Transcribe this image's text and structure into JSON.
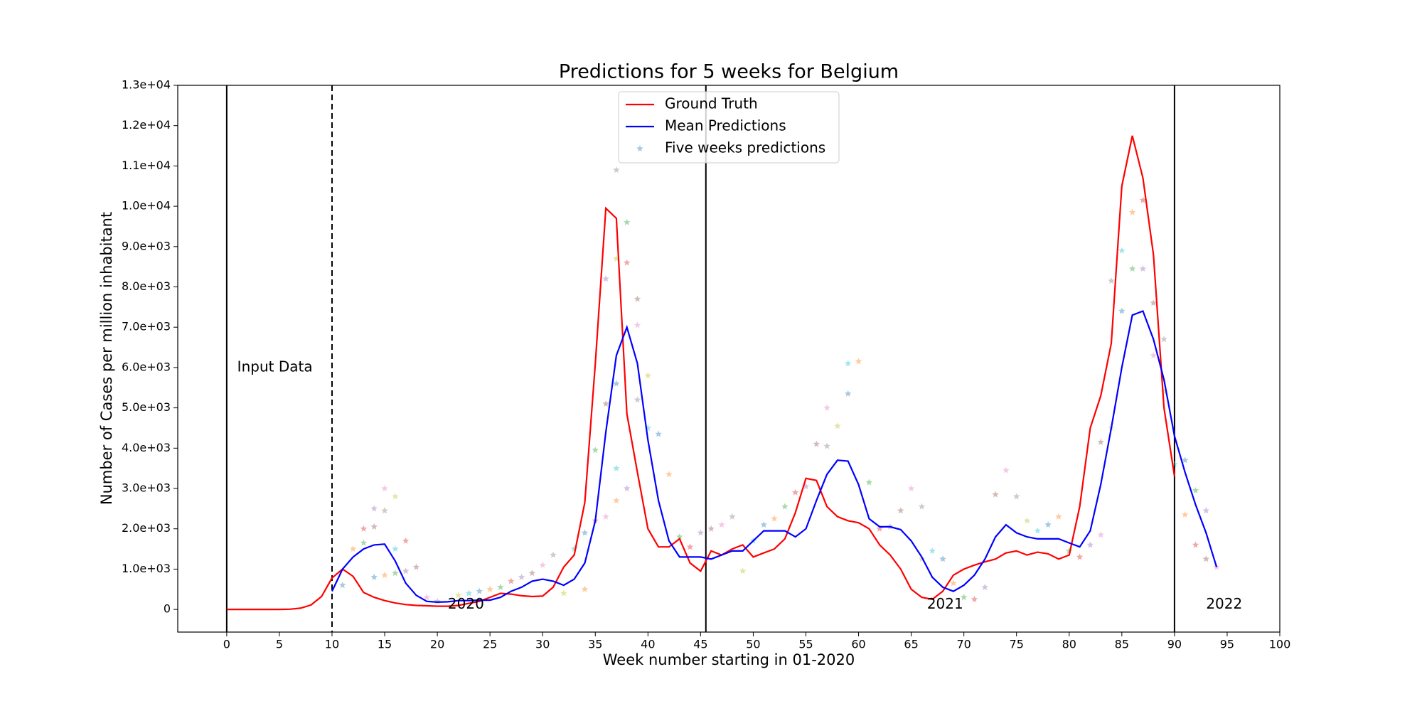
{
  "chart_data": {
    "type": "line",
    "title": "Predictions for 5 weeks for Belgium",
    "x_label": "Week number starting in 01-2020",
    "y_label": "Number of Cases per million inhabitant",
    "xlim": [
      -4.65,
      100
    ],
    "ylim": [
      -562,
      13000
    ],
    "xticks": [
      0,
      5,
      10,
      15,
      20,
      25,
      30,
      35,
      40,
      45,
      50,
      55,
      60,
      65,
      70,
      75,
      80,
      85,
      90,
      95,
      100
    ],
    "yticks": [
      0,
      {
        "value": 1000,
        "label": "1.0e+03"
      },
      {
        "value": 2000,
        "label": "2.0e+03"
      },
      {
        "value": 3000,
        "label": "3.0e+03"
      },
      {
        "value": 4000,
        "label": "4.0e+03"
      },
      {
        "value": 5000,
        "label": "5.0e+03"
      },
      {
        "value": 6000,
        "label": "6.0e+03"
      },
      {
        "value": 7000,
        "label": "7.0e+03"
      },
      {
        "value": 8000,
        "label": "8.0e+03"
      },
      {
        "value": 9000,
        "label": "9.0e+03"
      },
      {
        "value": 10000,
        "label": "1.0e+04"
      },
      {
        "value": 11000,
        "label": "1.1e+04"
      },
      {
        "value": 12000,
        "label": "1.2e+04"
      },
      {
        "value": 13000,
        "label": "1.3e+04"
      }
    ],
    "legend": "upper center",
    "vlines": [
      {
        "x": 0,
        "style": "solid"
      },
      {
        "x": 10,
        "style": "dashed"
      },
      {
        "x": 45.5,
        "style": "solid"
      },
      {
        "x": 90,
        "style": "solid"
      }
    ],
    "annotations": [
      {
        "text": "Input Data",
        "x": 1,
        "y": 6000
      },
      {
        "text": "2020",
        "x": 21,
        "y": 120
      },
      {
        "text": "2021",
        "x": 66.5,
        "y": 120
      },
      {
        "text": "2022",
        "x": 93,
        "y": 120
      }
    ],
    "series": [
      {
        "name": "Ground Truth",
        "color": "#ff0000",
        "kind": "line",
        "x": [
          0,
          1,
          2,
          3,
          4,
          5,
          6,
          7,
          8,
          9,
          10,
          11,
          12,
          13,
          14,
          15,
          16,
          17,
          18,
          19,
          20,
          21,
          22,
          23,
          24,
          25,
          26,
          27,
          28,
          29,
          30,
          31,
          32,
          33,
          34,
          35,
          36,
          37,
          38,
          39,
          40,
          41,
          42,
          43,
          44,
          45,
          46,
          47,
          48,
          49,
          50,
          51,
          52,
          53,
          54,
          55,
          56,
          57,
          58,
          59,
          60,
          61,
          62,
          63,
          64,
          65,
          66,
          67,
          68,
          69,
          70,
          71,
          72,
          73,
          74,
          75,
          76,
          77,
          78,
          79,
          80,
          81,
          82,
          83,
          84,
          85,
          86,
          87,
          88,
          89,
          90
        ],
        "values": [
          0,
          0,
          0,
          0,
          0,
          0,
          5,
          30,
          110,
          320,
          780,
          1000,
          820,
          420,
          300,
          220,
          160,
          120,
          100,
          90,
          80,
          80,
          100,
          150,
          200,
          300,
          400,
          380,
          340,
          320,
          330,
          550,
          1050,
          1350,
          2650,
          6100,
          9950,
          9700,
          4850,
          3400,
          2000,
          1550,
          1550,
          1750,
          1150,
          950,
          1450,
          1350,
          1500,
          1600,
          1300,
          1400,
          1500,
          1750,
          2400,
          3250,
          3200,
          2550,
          2300,
          2200,
          2150,
          2000,
          1600,
          1350,
          1000,
          500,
          300,
          250,
          450,
          850,
          1000,
          1100,
          1180,
          1250,
          1400,
          1450,
          1350,
          1420,
          1380,
          1250,
          1350,
          2550,
          4500,
          5300,
          6600,
          10500,
          11750,
          10700,
          8800,
          5000,
          3300
        ]
      },
      {
        "name": "Mean Predictions",
        "color": "#0000ff",
        "kind": "line",
        "x": [
          10,
          11,
          12,
          13,
          14,
          15,
          16,
          17,
          18,
          19,
          20,
          21,
          22,
          23,
          24,
          25,
          26,
          27,
          28,
          29,
          30,
          31,
          32,
          33,
          34,
          35,
          36,
          37,
          38,
          39,
          40,
          41,
          42,
          43,
          44,
          45,
          46,
          47,
          48,
          49,
          50,
          51,
          52,
          53,
          54,
          55,
          56,
          57,
          58,
          59,
          60,
          61,
          62,
          63,
          64,
          65,
          66,
          67,
          68,
          69,
          70,
          71,
          72,
          73,
          74,
          75,
          76,
          77,
          78,
          79,
          80,
          81,
          82,
          83,
          84,
          85,
          86,
          87,
          88,
          89,
          90,
          91,
          92,
          93,
          94
        ],
        "values": [
          450,
          1000,
          1300,
          1500,
          1600,
          1620,
          1200,
          650,
          350,
          200,
          180,
          190,
          220,
          220,
          230,
          230,
          300,
          450,
          550,
          700,
          750,
          700,
          600,
          750,
          1150,
          2200,
          4400,
          6300,
          7000,
          6100,
          4200,
          2700,
          1700,
          1300,
          1300,
          1300,
          1250,
          1350,
          1450,
          1450,
          1700,
          1950,
          1950,
          1950,
          1800,
          2000,
          2700,
          3350,
          3700,
          3680,
          3100,
          2250,
          2050,
          2050,
          1980,
          1700,
          1300,
          800,
          550,
          450,
          600,
          850,
          1250,
          1800,
          2100,
          1900,
          1800,
          1750,
          1750,
          1750,
          1650,
          1550,
          1950,
          3100,
          4500,
          6000,
          7300,
          7400,
          6700,
          5700,
          4300,
          3400,
          2600,
          1900,
          1050
        ]
      },
      {
        "name": "Five weeks predictions",
        "color": "#1f77b4",
        "kind": "scatter",
        "point_colors": [
          "#1f77b4",
          "#ff7f0e",
          "#2ca02c",
          "#d62728",
          "#9467bd",
          "#8c564b",
          "#e377c2",
          "#7f7f7f",
          "#bcbd22",
          "#17becf"
        ],
        "x": [
          11,
          12,
          13,
          13,
          14,
          14,
          15,
          15,
          16,
          16,
          14,
          15,
          16,
          17,
          17,
          18,
          19,
          20,
          22,
          23,
          24,
          25,
          26,
          27,
          28,
          29,
          30,
          31,
          32,
          33,
          34,
          34,
          35,
          35,
          36,
          36,
          36,
          37,
          37,
          37,
          37,
          37,
          38,
          38,
          38,
          39,
          39,
          39,
          40,
          40,
          41,
          42,
          43,
          44,
          45,
          46,
          47,
          48,
          49,
          50,
          51,
          52,
          53,
          54,
          55,
          56,
          57,
          57,
          58,
          59,
          59,
          60,
          61,
          62,
          63,
          64,
          65,
          66,
          66,
          67,
          68,
          69,
          70,
          71,
          72,
          73,
          74,
          75,
          76,
          77,
          78,
          79,
          80,
          81,
          82,
          83,
          83,
          84,
          84,
          85,
          85,
          86,
          86,
          87,
          87,
          88,
          88,
          89,
          89,
          90,
          91,
          91,
          92,
          92,
          93,
          93,
          94
        ],
        "values": [
          600,
          1500,
          1650,
          2000,
          2500,
          2050,
          3000,
          2450,
          2800,
          1500,
          800,
          850,
          900,
          1700,
          950,
          1050,
          300,
          200,
          350,
          400,
          450,
          500,
          550,
          700,
          800,
          900,
          1100,
          1350,
          400,
          1500,
          1900,
          500,
          3950,
          2200,
          8200,
          5100,
          2300,
          10900,
          8700,
          3500,
          5600,
          2700,
          9600,
          8600,
          3000,
          7700,
          7050,
          5200,
          5800,
          4500,
          4350,
          3350,
          1800,
          1550,
          1900,
          2000,
          2100,
          2300,
          950,
          1700,
          2100,
          2250,
          2550,
          2900,
          3050,
          4100,
          5000,
          4050,
          4550,
          6100,
          5350,
          6150,
          3150,
          2000,
          2050,
          2450,
          3000,
          2550,
          1250,
          1450,
          1250,
          650,
          300,
          250,
          550,
          2850,
          3450,
          2800,
          2200,
          1950,
          2100,
          2300,
          1450,
          1300,
          1600,
          4150,
          1850,
          8150,
          4500,
          8900,
          7400,
          9850,
          8450,
          10150,
          8450,
          7600,
          6300,
          6700,
          5400,
          3600,
          3700,
          2350,
          2950,
          1600,
          2450,
          1250,
          1050
        ]
      }
    ]
  }
}
